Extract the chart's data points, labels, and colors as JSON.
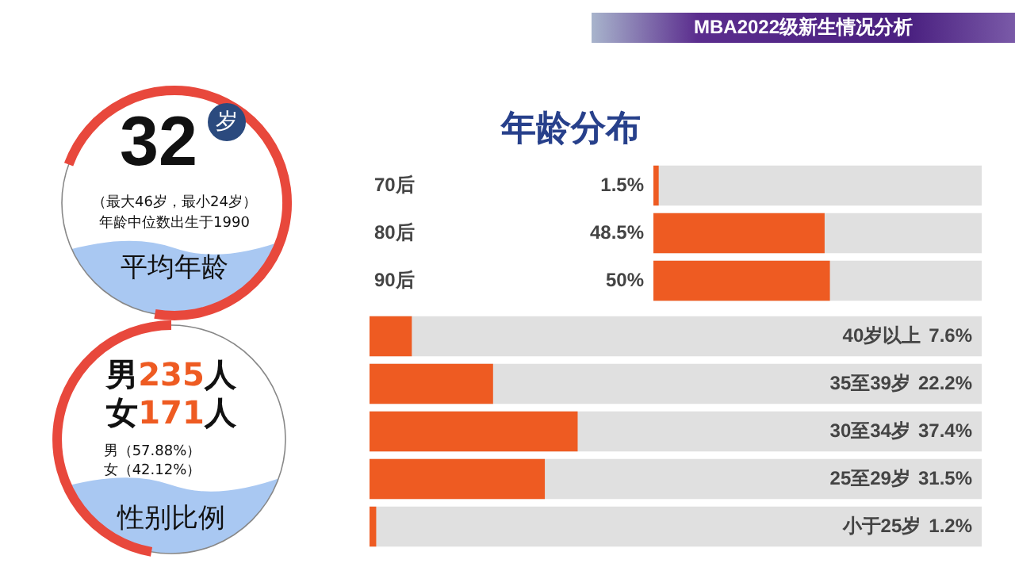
{
  "chart_data": [
    {
      "type": "other",
      "title": "MBA2022级新生情况分析",
      "annotations": [
        "32",
        "岁",
        "（最大46岁，最小24岁）",
        "年龄中位数出生于1990",
        "平均年龄",
        "男235人",
        "女171人",
        "男（57.88%）",
        "女（42.12%）",
        "性别比例"
      ]
    },
    {
      "type": "bar",
      "title": "年龄分布",
      "orientation": "horizontal",
      "categories": [
        "70后",
        "80后",
        "90后"
      ],
      "values": [
        1.5,
        48.5,
        50
      ],
      "value_labels": [
        "1.5%",
        "48.5%",
        "50%"
      ],
      "color": "#ee5b22",
      "xlim": [
        0,
        93
      ],
      "tick_labels": "y",
      "legend": false
    },
    {
      "type": "bar",
      "orientation": "horizontal",
      "categories": [
        "40岁以上",
        "35至39岁",
        "30至34岁",
        "25至29岁",
        "小于25岁"
      ],
      "values": [
        7.6,
        22.2,
        37.4,
        31.5,
        1.2
      ],
      "value_labels": [
        "7.6%",
        "22.2%",
        "37.4%",
        "31.5%",
        "1.2%"
      ],
      "color": "#ee5b22",
      "xlim": [
        0,
        110
      ],
      "tick_labels": "y",
      "legend": false
    }
  ]
}
